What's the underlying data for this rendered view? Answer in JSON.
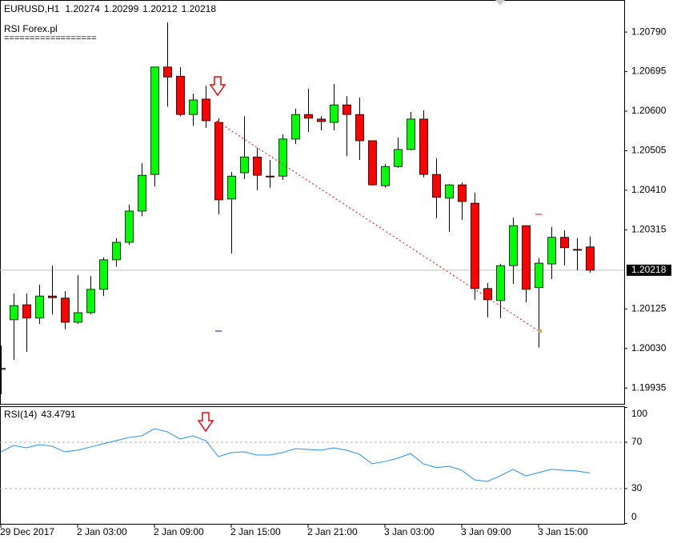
{
  "chart_data": [
    {
      "type": "candlestick",
      "title": "EURUSD,H1",
      "subtitle": "RSI Forex.pl",
      "separator": "==================",
      "up_color": "#00ff00",
      "down_color": "#ff0000",
      "categories": [
        "29 Dec 2017",
        null,
        null,
        null,
        null,
        null,
        "2 Jan 03:00",
        null,
        null,
        null,
        null,
        null,
        "2 Jan 09:00",
        null,
        null,
        null,
        null,
        null,
        "2 Jan 15:00",
        null,
        null,
        null,
        null,
        null,
        "2 Jan 21:00",
        null,
        null,
        null,
        null,
        null,
        "3 Jan 03:00",
        null,
        null,
        null,
        null,
        null,
        "3 Jan 09:00",
        null,
        null,
        null,
        null,
        null,
        "3 Jan 15:00",
        null,
        null,
        null,
        null
      ],
      "open": [
        1.1998,
        1.20099,
        1.20135,
        1.20103,
        1.20156,
        1.20151,
        1.20093,
        1.20116,
        1.20172,
        1.20243,
        1.20285,
        1.2036,
        1.20448,
        1.20706,
        1.20684,
        1.20592,
        1.20629,
        1.20573,
        1.20389,
        1.20452,
        1.2049,
        1.20444,
        1.20444,
        1.20533,
        1.20592,
        1.20581,
        1.20573,
        1.20615,
        1.20592,
        1.20529,
        1.20421,
        1.20467,
        1.20508,
        1.20581,
        1.20448,
        1.20391,
        1.20423,
        1.20379,
        1.20174,
        1.20145,
        1.20229,
        1.20325,
        1.20176,
        1.20233,
        1.20297,
        1.20268,
        1.20274
      ],
      "high": [
        1.20037,
        1.20162,
        1.20162,
        1.20183,
        1.20229,
        1.20168,
        1.20206,
        1.20204,
        1.20249,
        1.20295,
        1.20375,
        1.20475,
        1.20706,
        1.20813,
        1.20706,
        1.20642,
        1.20661,
        1.20583,
        1.20454,
        1.20588,
        1.20512,
        1.20483,
        1.20544,
        1.20606,
        1.20654,
        1.20588,
        1.20665,
        1.20636,
        1.20633,
        1.20529,
        1.20473,
        1.20537,
        1.20598,
        1.20602,
        1.20487,
        1.20425,
        1.20429,
        1.20404,
        1.20187,
        1.20233,
        1.20344,
        1.20325,
        1.20247,
        1.20322,
        1.20314,
        1.20295,
        1.20299
      ],
      "low": [
        1.1992,
        1.20003,
        1.20022,
        1.20089,
        1.20112,
        1.20076,
        1.20089,
        1.20112,
        1.20156,
        1.20227,
        1.20279,
        1.20348,
        1.20419,
        1.20611,
        1.20588,
        1.20565,
        1.2056,
        1.20352,
        1.20258,
        1.20437,
        1.2041,
        1.20416,
        1.20435,
        1.20521,
        1.2055,
        1.20554,
        1.20554,
        1.20492,
        1.20483,
        1.20421,
        1.20416,
        1.20464,
        1.20506,
        1.20441,
        1.20343,
        1.2031,
        1.20339,
        1.20147,
        1.20105,
        1.20103,
        1.20185,
        1.20141,
        1.20032,
        1.20197,
        1.20229,
        1.20218,
        1.20212
      ],
      "close": [
        1.19982,
        1.20133,
        1.20103,
        1.20156,
        1.20152,
        1.20093,
        1.20116,
        1.20172,
        1.20243,
        1.20285,
        1.2036,
        1.20446,
        1.20706,
        1.20682,
        1.20592,
        1.20627,
        1.20577,
        1.20387,
        1.20444,
        1.2049,
        1.20446,
        1.20442,
        1.20533,
        1.20592,
        1.20583,
        1.20575,
        1.20615,
        1.20592,
        1.20529,
        1.20423,
        1.20467,
        1.20508,
        1.20581,
        1.20448,
        1.20393,
        1.20423,
        1.20383,
        1.20174,
        1.20147,
        1.20229,
        1.20325,
        1.20172,
        1.20235,
        1.20297,
        1.20272,
        1.20266,
        1.20218
      ],
      "ylim": [
        1.19897,
        1.20867
      ],
      "yticks": [
        {
          "value": 1.2079,
          "label": "1.20790"
        },
        1.20695,
        {
          "value": 1.206,
          "label": "1.20600"
        },
        1.20505,
        {
          "value": 1.2041,
          "label": "1.20410"
        },
        1.20315,
        1.20125,
        {
          "value": 1.2003,
          "label": "1.20030"
        },
        1.19935
      ]
    },
    {
      "type": "line",
      "title": "RSI(14)",
      "color": "#1e90ff",
      "values": [
        61.7,
        67.2,
        65.2,
        67.9,
        66.6,
        61.7,
        63.1,
        65.9,
        68.6,
        71.4,
        74.1,
        75.5,
        81.7,
        79.0,
        72.8,
        75.5,
        71.4,
        57.6,
        61.0,
        61.7,
        59.0,
        59.0,
        61.0,
        64.5,
        63.8,
        63.1,
        65.2,
        63.1,
        59.7,
        51.4,
        53.4,
        56.2,
        60.3,
        51.4,
        48.1,
        49.3,
        45.9,
        37.6,
        36.2,
        41.0,
        46.6,
        41.0,
        43.8,
        46.6,
        45.9,
        45.2,
        43.4791
      ],
      "ylim": [
        0,
        100
      ],
      "yticks": [
        0,
        30,
        70,
        100
      ],
      "levels": [
        30,
        70
      ]
    }
  ]
}
